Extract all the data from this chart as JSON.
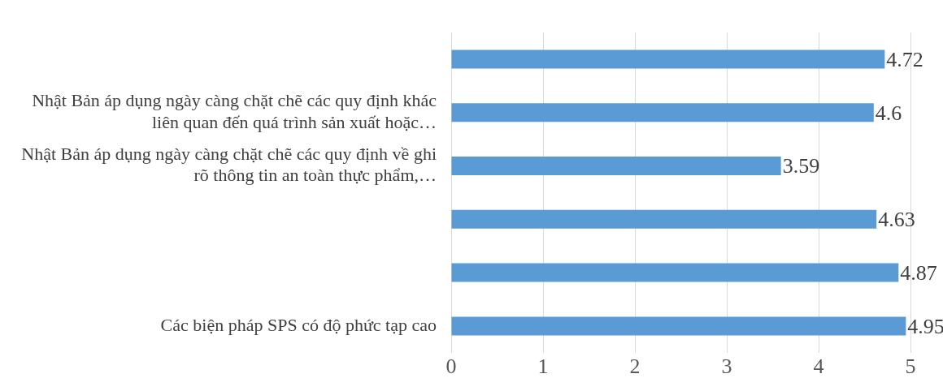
{
  "chart_data": {
    "type": "bar",
    "orientation": "horizontal",
    "categories": [
      null,
      "Nhật Bản áp dụng ngày càng chặt chẽ các quy định khác liên quan đến quá trình sản xuất hoặc…",
      "Nhật Bản áp dụng ngày càng chặt chẽ các quy định về ghi rõ thông tin an toàn thực phẩm,…",
      null,
      null,
      "Các biện pháp SPS có độ phức tạp cao"
    ],
    "values": [
      4.72,
      4.6,
      3.59,
      4.63,
      4.87,
      4.95
    ],
    "color": "#5b9bd5",
    "xlim": [
      0,
      5
    ],
    "xticks": [
      0,
      1,
      2,
      3,
      4,
      5
    ],
    "grid": "x",
    "data_labels": true,
    "legend": false
  }
}
